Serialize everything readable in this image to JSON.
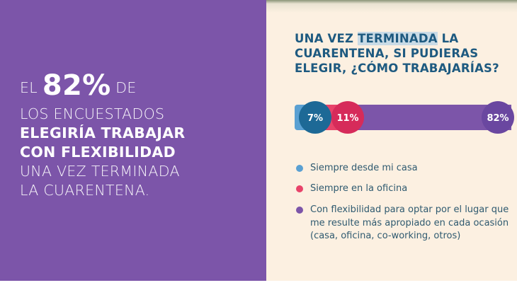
{
  "left": {
    "line1_pre": "EL",
    "line1_big": "82%",
    "line1_post": "DE",
    "line2": "LOS ENCUESTADOS",
    "line3": "ELEGIRÍA TRABAJAR",
    "line4": "CON FLEXIBILIDAD",
    "line5": "UNA VEZ TERMINADA",
    "line6": "LA CUARENTENA."
  },
  "question": {
    "part1": "UNA VEZ ",
    "highlight": "TERMINADA",
    "part2": " LA CUARENTENA, SI PUDIERAS ELEGIR, ¿CÓMO TRABAJARÍAS?"
  },
  "chart_data": {
    "type": "bar",
    "orientation": "horizontal-stacked",
    "categories": [
      "Siempre desde mi casa",
      "Siempre en la oficina",
      "Con flexibilidad para optar por el lugar que me resulte más apropiado en cada ocasión (casa, oficina, co-working, otros)"
    ],
    "values": [
      7,
      11,
      82
    ],
    "labels": [
      "7%",
      "11%",
      "82%"
    ],
    "colors": [
      "#5aa0d2",
      "#e8436a",
      "#7c55a9"
    ],
    "circle_colors": [
      "#1d6996",
      "#d62b5a",
      "#6a47a0"
    ],
    "legend_placement": "bottom"
  }
}
